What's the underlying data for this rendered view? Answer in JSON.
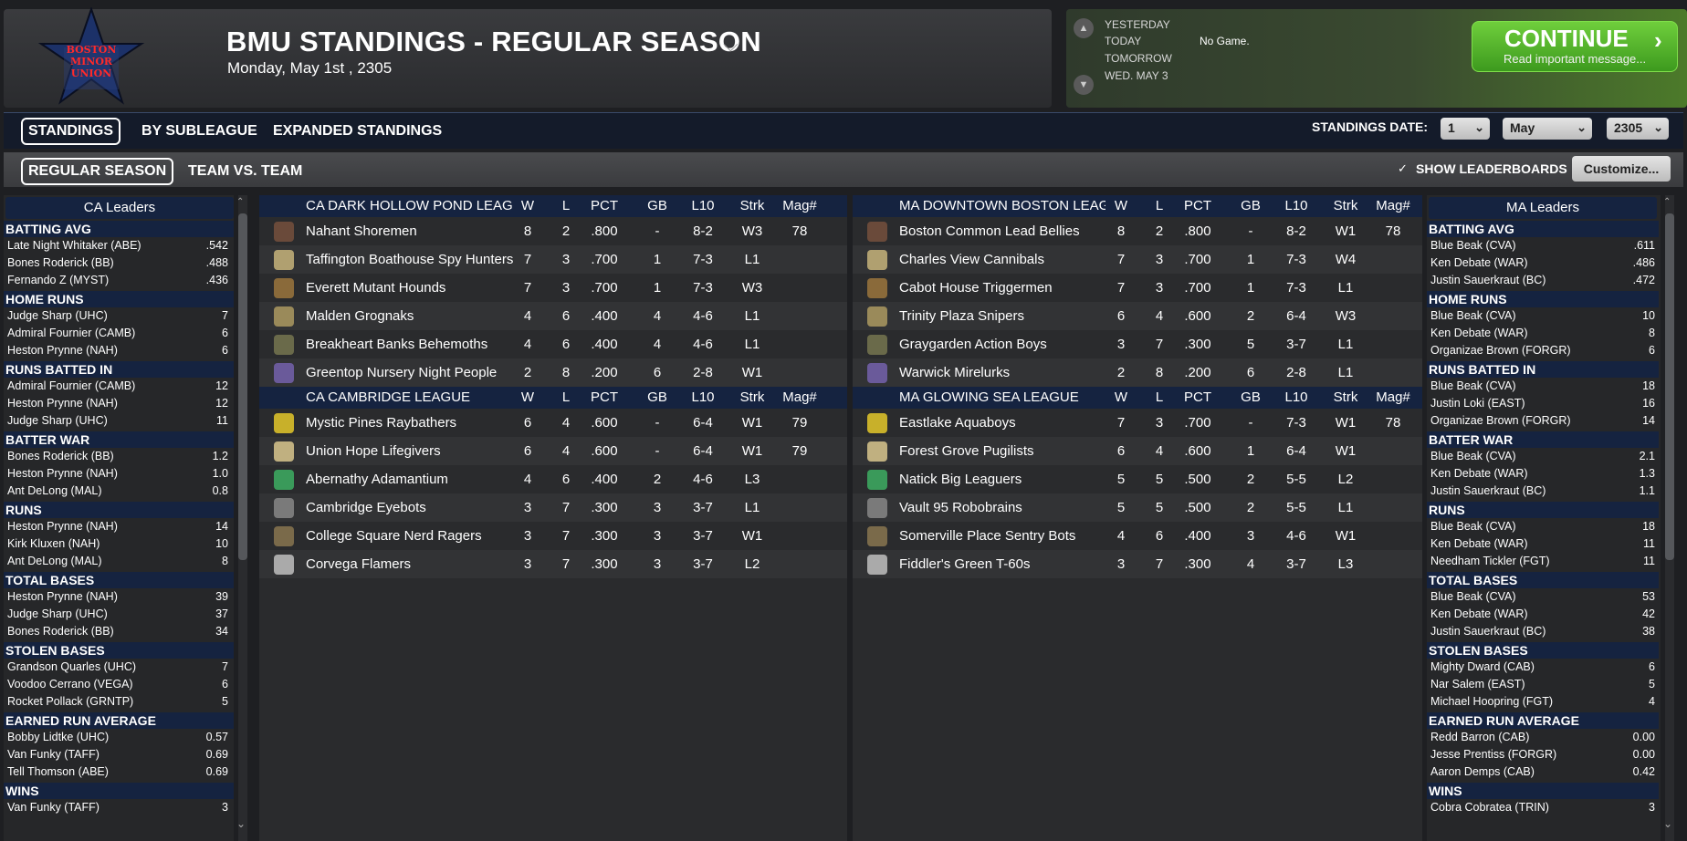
{
  "header": {
    "title": "BMU STANDINGS - REGULAR SEASON",
    "date": "Monday, May 1st , 2305",
    "logo_text": [
      "BOSTON",
      "MINOR",
      "UNION"
    ]
  },
  "game_panel": {
    "days": [
      "YESTERDAY",
      "TODAY",
      "TOMORROW",
      "WED. MAY 3"
    ],
    "today_status": "No Game.",
    "continue_label": "CONTINUE",
    "continue_sub": "Read important message..."
  },
  "tabs_top": [
    "STANDINGS",
    "BY SUBLEAGUE",
    "EXPANDED STANDINGS"
  ],
  "tabs_sub": [
    "REGULAR SEASON",
    "TEAM VS. TEAM"
  ],
  "standings_date": {
    "label": "STANDINGS DATE:",
    "day": "1",
    "month": "May",
    "year": "2305"
  },
  "show_leaderboards": "SHOW LEADERBOARDS",
  "customize_label": "Customize...",
  "colors": {
    "header_navy": "#152340",
    "accent_green": "#4fb82a",
    "panel_dark": "#2a2b2d"
  },
  "columns": [
    "W",
    "L",
    "PCT",
    "GB",
    "L10",
    "Strk",
    "Mag#"
  ],
  "leaders_left": {
    "title": "CA Leaders",
    "categories": [
      {
        "name": "BATTING AVG",
        "rows": [
          [
            "Late Night Whitaker (ABE)",
            ".542"
          ],
          [
            "Bones Roderick (BB)",
            ".488"
          ],
          [
            "Fernando Z (MYST)",
            ".436"
          ]
        ]
      },
      {
        "name": "HOME RUNS",
        "rows": [
          [
            "Judge Sharp (UHC)",
            "7"
          ],
          [
            "Admiral Fournier (CAMB)",
            "6"
          ],
          [
            "Heston Prynne (NAH)",
            "6"
          ]
        ]
      },
      {
        "name": "RUNS BATTED IN",
        "rows": [
          [
            "Admiral Fournier (CAMB)",
            "12"
          ],
          [
            "Heston Prynne (NAH)",
            "12"
          ],
          [
            "Judge Sharp (UHC)",
            "11"
          ]
        ]
      },
      {
        "name": "BATTER WAR",
        "rows": [
          [
            "Bones Roderick (BB)",
            "1.2"
          ],
          [
            "Heston Prynne (NAH)",
            "1.0"
          ],
          [
            "Ant DeLong (MAL)",
            "0.8"
          ]
        ]
      },
      {
        "name": "RUNS",
        "rows": [
          [
            "Heston Prynne (NAH)",
            "14"
          ],
          [
            "Kirk Kluxen (NAH)",
            "10"
          ],
          [
            "Ant DeLong (MAL)",
            "8"
          ]
        ]
      },
      {
        "name": "TOTAL BASES",
        "rows": [
          [
            "Heston Prynne (NAH)",
            "39"
          ],
          [
            "Judge Sharp (UHC)",
            "37"
          ],
          [
            "Bones Roderick (BB)",
            "34"
          ]
        ]
      },
      {
        "name": "STOLEN BASES",
        "rows": [
          [
            "Grandson Quarles (UHC)",
            "7"
          ],
          [
            "Voodoo Cerrano (VEGA)",
            "6"
          ],
          [
            "Rocket Pollack (GRNTP)",
            "5"
          ]
        ]
      },
      {
        "name": "EARNED RUN AVERAGE",
        "rows": [
          [
            "Bobby Lidtke (UHC)",
            "0.57"
          ],
          [
            "Van Funky (TAFF)",
            "0.69"
          ],
          [
            "Tell Thomson (ABE)",
            "0.69"
          ]
        ]
      },
      {
        "name": "WINS",
        "rows": [
          [
            "Van Funky (TAFF)",
            "3"
          ]
        ]
      }
    ]
  },
  "leaders_right": {
    "title": "MA Leaders",
    "categories": [
      {
        "name": "BATTING AVG",
        "rows": [
          [
            "Blue Beak (CVA)",
            ".611"
          ],
          [
            "Ken Debate (WAR)",
            ".486"
          ],
          [
            "Justin Sauerkraut (BC)",
            ".472"
          ]
        ]
      },
      {
        "name": "HOME RUNS",
        "rows": [
          [
            "Blue Beak (CVA)",
            "10"
          ],
          [
            "Ken Debate (WAR)",
            "8"
          ],
          [
            "Organizae Brown (FORGR)",
            "6"
          ]
        ]
      },
      {
        "name": "RUNS BATTED IN",
        "rows": [
          [
            "Blue Beak (CVA)",
            "18"
          ],
          [
            "Justin Loki (EAST)",
            "16"
          ],
          [
            "Organizae Brown (FORGR)",
            "14"
          ]
        ]
      },
      {
        "name": "BATTER WAR",
        "rows": [
          [
            "Blue Beak (CVA)",
            "2.1"
          ],
          [
            "Ken Debate (WAR)",
            "1.3"
          ],
          [
            "Justin Sauerkraut (BC)",
            "1.1"
          ]
        ]
      },
      {
        "name": "RUNS",
        "rows": [
          [
            "Blue Beak (CVA)",
            "18"
          ],
          [
            "Ken Debate (WAR)",
            "11"
          ],
          [
            "Needham Tickler (FGT)",
            "11"
          ]
        ]
      },
      {
        "name": "TOTAL BASES",
        "rows": [
          [
            "Blue Beak (CVA)",
            "53"
          ],
          [
            "Ken Debate (WAR)",
            "42"
          ],
          [
            "Justin Sauerkraut (BC)",
            "38"
          ]
        ]
      },
      {
        "name": "STOLEN BASES",
        "rows": [
          [
            "Mighty Dward (CAB)",
            "6"
          ],
          [
            "Nar Salem (EAST)",
            "5"
          ],
          [
            "Michael Hoopring (FGT)",
            "4"
          ]
        ]
      },
      {
        "name": "EARNED RUN AVERAGE",
        "rows": [
          [
            "Redd Barron (CAB)",
            "0.00"
          ],
          [
            "Jesse Prentiss (FORGR)",
            "0.00"
          ],
          [
            "Aaron Demps (CAB)",
            "0.42"
          ]
        ]
      },
      {
        "name": "WINS",
        "rows": [
          [
            "Cobra Cobratea (TRIN)",
            "3"
          ]
        ]
      }
    ]
  },
  "leagues_left": [
    {
      "name": "CA DARK HOLLOW POND LEAGUE",
      "teams": [
        [
          "Nahant Shoremen",
          "8",
          "2",
          ".800",
          "-",
          "8-2",
          "W3",
          "78"
        ],
        [
          "Taffington Boathouse Spy Hunters",
          "7",
          "3",
          ".700",
          "1",
          "7-3",
          "L1",
          ""
        ],
        [
          "Everett Mutant Hounds",
          "7",
          "3",
          ".700",
          "1",
          "7-3",
          "W3",
          ""
        ],
        [
          "Malden Grognaks",
          "4",
          "6",
          ".400",
          "4",
          "4-6",
          "L1",
          ""
        ],
        [
          "Breakheart Banks Behemoths",
          "4",
          "6",
          ".400",
          "4",
          "4-6",
          "L1",
          ""
        ],
        [
          "Greentop Nursery Night People",
          "2",
          "8",
          ".200",
          "6",
          "2-8",
          "W1",
          ""
        ]
      ]
    },
    {
      "name": "CA CAMBRIDGE LEAGUE",
      "teams": [
        [
          "Mystic Pines Raybathers",
          "6",
          "4",
          ".600",
          "-",
          "6-4",
          "W1",
          "79"
        ],
        [
          "Union Hope Lifegivers",
          "6",
          "4",
          ".600",
          "-",
          "6-4",
          "W1",
          "79"
        ],
        [
          "Abernathy Adamantium",
          "4",
          "6",
          ".400",
          "2",
          "4-6",
          "L3",
          ""
        ],
        [
          "Cambridge Eyebots",
          "3",
          "7",
          ".300",
          "3",
          "3-7",
          "L1",
          ""
        ],
        [
          "College Square Nerd Ragers",
          "3",
          "7",
          ".300",
          "3",
          "3-7",
          "W1",
          ""
        ],
        [
          "Corvega Flamers",
          "3",
          "7",
          ".300",
          "3",
          "3-7",
          "L2",
          ""
        ]
      ]
    }
  ],
  "leagues_right": [
    {
      "name": "MA DOWNTOWN BOSTON LEAGUE",
      "teams": [
        [
          "Boston Common Lead Bellies",
          "8",
          "2",
          ".800",
          "-",
          "8-2",
          "W1",
          "78"
        ],
        [
          "Charles View Cannibals",
          "7",
          "3",
          ".700",
          "1",
          "7-3",
          "W4",
          ""
        ],
        [
          "Cabot House Triggermen",
          "7",
          "3",
          ".700",
          "1",
          "7-3",
          "L1",
          ""
        ],
        [
          "Trinity Plaza Snipers",
          "6",
          "4",
          ".600",
          "2",
          "6-4",
          "W3",
          ""
        ],
        [
          "Graygarden Action Boys",
          "3",
          "7",
          ".300",
          "5",
          "3-7",
          "L1",
          ""
        ],
        [
          "Warwick Mirelurks",
          "2",
          "8",
          ".200",
          "6",
          "2-8",
          "L1",
          ""
        ]
      ]
    },
    {
      "name": "MA GLOWING SEA LEAGUE",
      "teams": [
        [
          "Eastlake Aquaboys",
          "7",
          "3",
          ".700",
          "-",
          "7-3",
          "W1",
          "78"
        ],
        [
          "Forest Grove Pugilists",
          "6",
          "4",
          ".600",
          "1",
          "6-4",
          "W1",
          ""
        ],
        [
          "Natick Big Leaguers",
          "5",
          "5",
          ".500",
          "2",
          "5-5",
          "L2",
          ""
        ],
        [
          "Vault 95 Robobrains",
          "5",
          "5",
          ".500",
          "2",
          "5-5",
          "L1",
          ""
        ],
        [
          "Somerville Place Sentry Bots",
          "4",
          "6",
          ".400",
          "3",
          "4-6",
          "W1",
          ""
        ],
        [
          "Fiddler's Green T-60s",
          "3",
          "7",
          ".300",
          "4",
          "3-7",
          "L3",
          ""
        ]
      ]
    }
  ]
}
